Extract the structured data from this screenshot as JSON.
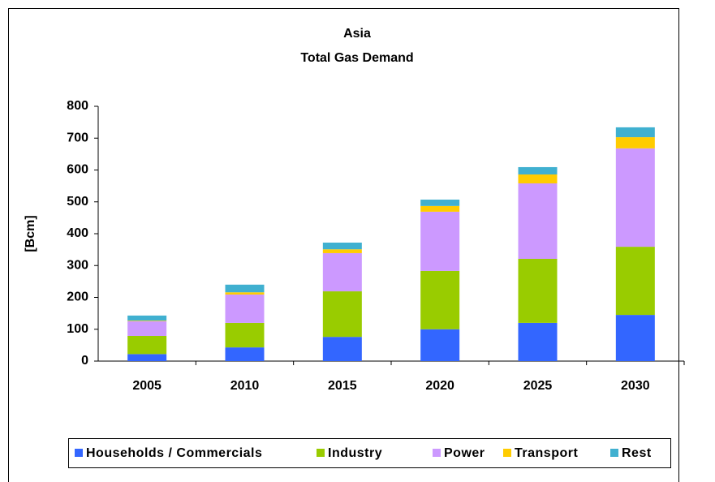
{
  "chart_data": {
    "type": "bar",
    "stacked": true,
    "title": "Asia",
    "subtitle": "Total Gas Demand",
    "y_label": "[Bcm]",
    "categories": [
      "2005",
      "2010",
      "2015",
      "2020",
      "2025",
      "2030"
    ],
    "series": [
      {
        "name": "Households / Commercials",
        "color": "#3366ff",
        "values": [
          22,
          43,
          76,
          100,
          120,
          145
        ]
      },
      {
        "name": "Industry",
        "color": "#99cc00",
        "values": [
          57,
          77,
          143,
          183,
          201,
          214
        ]
      },
      {
        "name": "Power",
        "color": "#cc99ff",
        "values": [
          46,
          89,
          120,
          186,
          237,
          309
        ]
      },
      {
        "name": "Transport",
        "color": "#ffcc00",
        "values": [
          2,
          7,
          12,
          18,
          28,
          35
        ]
      },
      {
        "name": "Rest",
        "color": "#40b0d0",
        "values": [
          16,
          24,
          21,
          20,
          23,
          31
        ]
      }
    ],
    "ylim": [
      0,
      800
    ],
    "yticks": [
      0,
      100,
      200,
      300,
      400,
      500,
      600,
      700,
      800
    ],
    "grid": false,
    "legend": "bottom"
  }
}
